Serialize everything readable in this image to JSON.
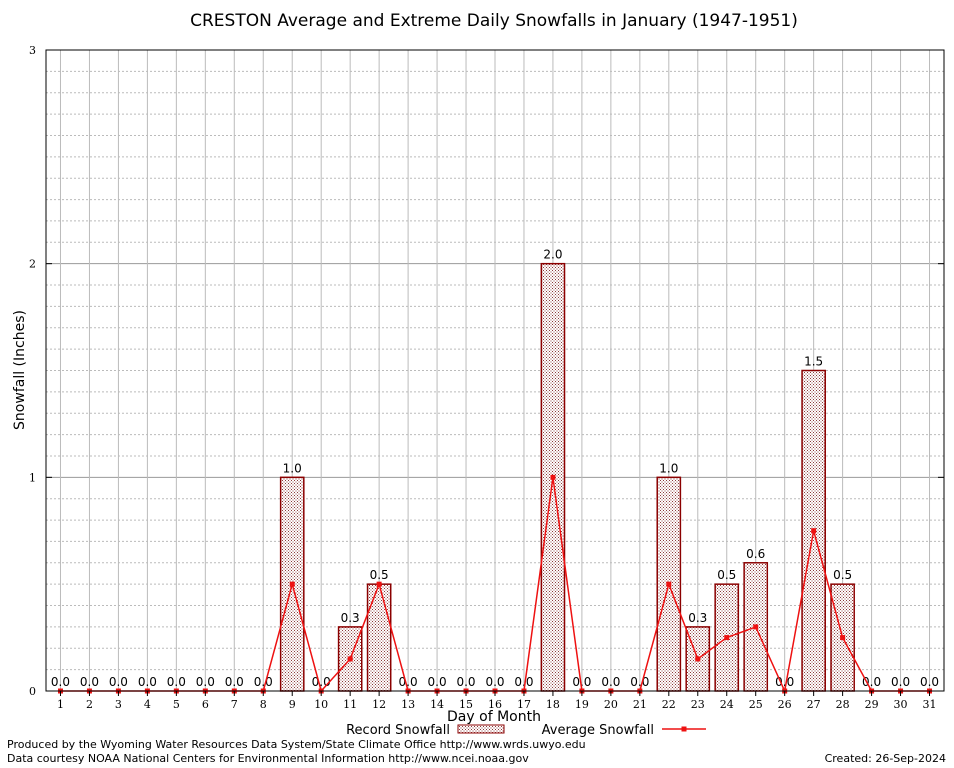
{
  "chart_data": {
    "type": "bar",
    "title": "CRESTON Average and Extreme Daily Snowfalls in January (1947-1951)",
    "xlabel": "Day of Month",
    "ylabel": "Snowfall (Inches)",
    "ylim": [
      0,
      3
    ],
    "yticks": [
      0,
      1,
      2,
      3
    ],
    "grid": true,
    "legend_position": "bottom",
    "categories": [
      1,
      2,
      3,
      4,
      5,
      6,
      7,
      8,
      9,
      10,
      11,
      12,
      13,
      14,
      15,
      16,
      17,
      18,
      19,
      20,
      21,
      22,
      23,
      24,
      25,
      26,
      27,
      28,
      29,
      30,
      31
    ],
    "series": [
      {
        "name": "Record Snowfall",
        "kind": "bar",
        "values": [
          0,
          0,
          0,
          0,
          0,
          0,
          0,
          0,
          1.0,
          0,
          0.3,
          0.5,
          0,
          0,
          0,
          0,
          0,
          2.0,
          0,
          0,
          0,
          1.0,
          0.3,
          0.5,
          0.6,
          0,
          1.5,
          0.5,
          0,
          0,
          0
        ],
        "labels": [
          "0.0",
          "0.0",
          "0.0",
          "0.0",
          "0.0",
          "0.0",
          "0.0",
          "0.0",
          "1.0",
          "0.0",
          "0.3",
          "0.5",
          "0.0",
          "0.0",
          "0.0",
          "0.0",
          "0.0",
          "2.0",
          "0.0",
          "0.0",
          "0.0",
          "1.0",
          "0.3",
          "0.5",
          "0.6",
          "0.0",
          "1.5",
          "0.5",
          "0.0",
          "0.0",
          "0.0"
        ]
      },
      {
        "name": "Average Snowfall",
        "kind": "line",
        "values": [
          0,
          0,
          0,
          0,
          0,
          0,
          0,
          0,
          0.5,
          0,
          0.15,
          0.5,
          0,
          0,
          0,
          0,
          0,
          1.0,
          0,
          0,
          0,
          0.5,
          0.15,
          0.25,
          0.3,
          0,
          0.75,
          0.25,
          0,
          0,
          0
        ]
      }
    ],
    "colors": {
      "bar_fill": "#c9a8a8",
      "bar_border": "#8b0000",
      "line": "#ee1111",
      "grid": "#bbbbbb"
    }
  },
  "footer": {
    "left_line1": "Produced by the Wyoming Water Resources Data System/State Climate Office http://www.wrds.uwyo.edu",
    "left_line2": "Data courtesy NOAA National Centers for Environmental Information http://www.ncei.noaa.gov",
    "created": "Created: 26-Sep-2024"
  }
}
